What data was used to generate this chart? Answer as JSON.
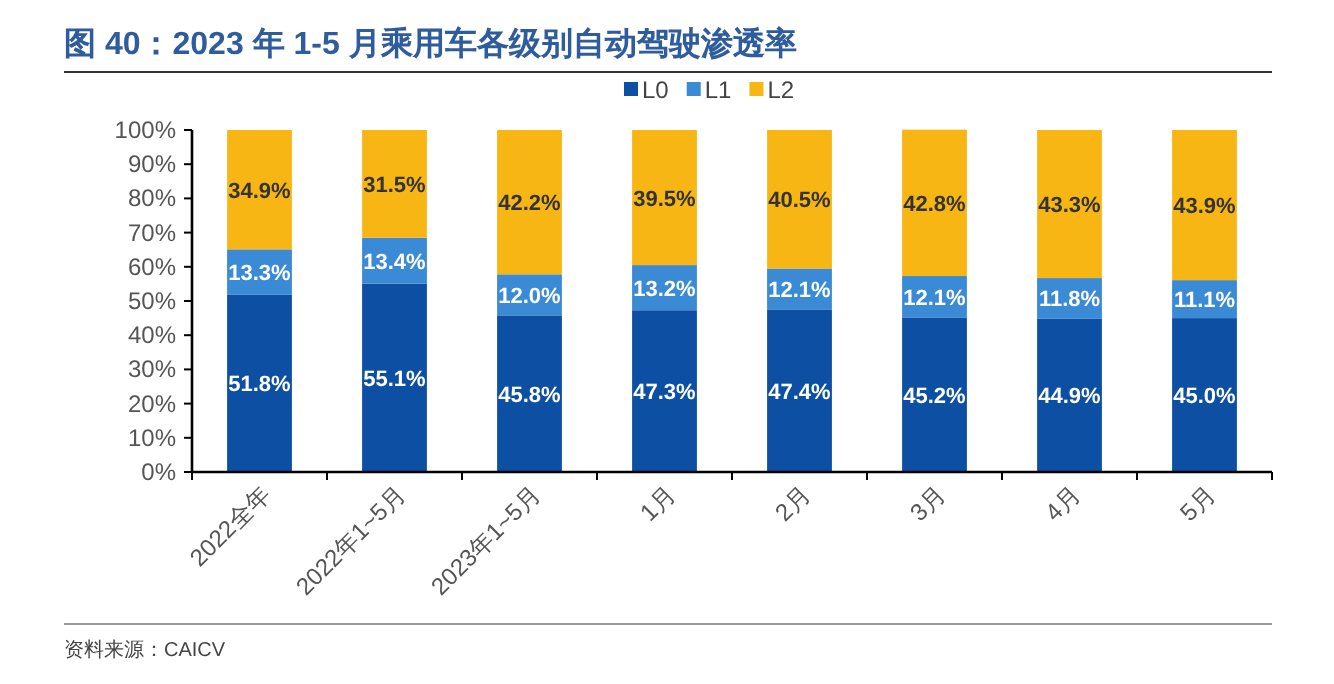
{
  "chart_data": {
    "type": "bar",
    "stacked": true,
    "title": "图 40：2023 年 1-5 月乘用车各级别自动驾驶渗透率",
    "categories": [
      "2022全年",
      "2022年1~5月",
      "2023年1~5月",
      "1月",
      "2月",
      "3月",
      "4月",
      "5月"
    ],
    "series": [
      {
        "name": "L0",
        "color": "#0d4fa3",
        "values": [
          51.8,
          55.1,
          45.8,
          47.3,
          47.4,
          45.2,
          44.9,
          45.0
        ],
        "value_labels": [
          "51.8%",
          "55.1%",
          "45.8%",
          "47.3%",
          "47.4%",
          "45.2%",
          "44.9%",
          "45.0%"
        ]
      },
      {
        "name": "L1",
        "color": "#3a8ad6",
        "values": [
          13.3,
          13.4,
          12.0,
          13.2,
          12.1,
          12.1,
          11.8,
          11.1
        ],
        "value_labels": [
          "13.3%",
          "13.4%",
          "12.0%",
          "13.2%",
          "12.1%",
          "12.1%",
          "11.8%",
          "11.1%"
        ]
      },
      {
        "name": "L2",
        "color": "#f7b614",
        "values": [
          34.9,
          31.5,
          42.2,
          39.5,
          40.5,
          42.8,
          43.3,
          43.9
        ],
        "value_labels": [
          "34.9%",
          "31.5%",
          "42.2%",
          "39.5%",
          "40.5%",
          "42.8%",
          "43.3%",
          "43.9%"
        ]
      }
    ],
    "ylim": [
      0,
      100
    ],
    "yticks": [
      {
        "value": 0,
        "label": "0%"
      },
      {
        "value": 10,
        "label": "10%"
      },
      {
        "value": 20,
        "label": "20%"
      },
      {
        "value": 30,
        "label": "30%"
      },
      {
        "value": 40,
        "label": "40%"
      },
      {
        "value": 50,
        "label": "50%"
      },
      {
        "value": 60,
        "label": "60%"
      },
      {
        "value": 70,
        "label": "70%"
      },
      {
        "value": 80,
        "label": "80%"
      },
      {
        "value": 90,
        "label": "90%"
      },
      {
        "value": 100,
        "label": "100%"
      }
    ],
    "legend": "top",
    "grid": false,
    "annotations": [
      "资料来源：CAICV"
    ]
  }
}
